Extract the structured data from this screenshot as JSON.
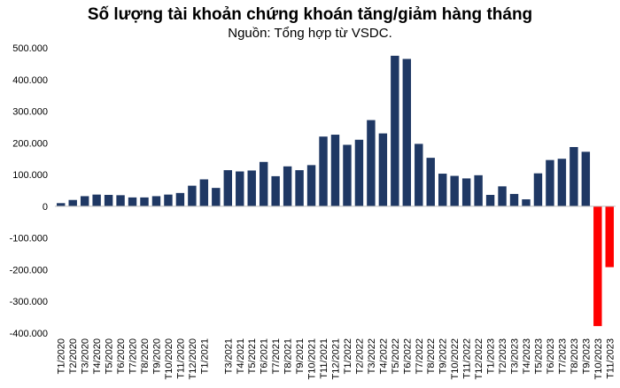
{
  "chart_data": {
    "type": "bar",
    "title": "Số lượng tài khoản chứng khoán tăng/giảm hàng tháng",
    "subtitle": "Nguồn: Tổng hợp từ VSDC.",
    "xlabel": "",
    "ylabel": "",
    "ylim": [
      -400000,
      500000
    ],
    "y_ticks": [
      "500.000",
      "400.000",
      "300.000",
      "200.000",
      "100.000",
      "0",
      "-100.000",
      "-200.000",
      "-300.000",
      "-400.000"
    ],
    "y_tick_values": [
      500000,
      400000,
      300000,
      200000,
      100000,
      0,
      -100000,
      -200000,
      -300000,
      -400000
    ],
    "grid": false,
    "legend": "none",
    "colors": {
      "positive": "#1f3864",
      "negative": "#ff0000"
    },
    "categories": [
      "T1/2020",
      "T2/2020",
      "T3/2020",
      "T4/2020",
      "T5/2020",
      "T6/2020",
      "T7/2020",
      "T8/2020",
      "T9/2020",
      "T10/2020",
      "T11/2020",
      "T12/2020",
      "T1/2021",
      "T2/2021",
      "T3/2021",
      "T4/2021",
      "T5/2021",
      "T6/2021",
      "T7/2021",
      "T8/2021",
      "T9/2021",
      "T10/2021",
      "T11/2021",
      "T12/2021",
      "T1/2022",
      "T2/2022",
      "T3/2022",
      "T4/2022",
      "T5/2022",
      "T6/2022",
      "T7/2022",
      "T8/2022",
      "T9/2022",
      "T10/2022",
      "T11/2022",
      "T12/2022",
      "T1/2023",
      "T2/2023",
      "T3/2023",
      "T4/2023",
      "T5/2023",
      "T6/2023",
      "T7/2023",
      "T8/2023",
      "T9/2023",
      "T10/2023",
      "T11/2023"
    ],
    "x_tick_labels": [
      "T1/2020",
      "T2/2020",
      "T3/2020",
      "T4/2020",
      "T5/2020",
      "T6/2020",
      "T7/2020",
      "T8/2020",
      "T9/2020",
      "T10/2020",
      "T11/2020",
      "T12/2020",
      "T1/2021",
      "",
      "T3/2021",
      "T4/2021",
      "T5/2021",
      "T6/2021",
      "T7/2021",
      "T8/2021",
      "T9/2021",
      "T10/2021",
      "T11/2021",
      "T12/2021",
      "T1/2022",
      "T2/2022",
      "T3/2022",
      "T4/2022",
      "T5/2022",
      "T6/2022",
      "T7/2022",
      "T8/2022",
      "T9/2022",
      "T10/2022",
      "T11/2022",
      "T12/2022",
      "T1/2023",
      "T2/2023",
      "T3/2023",
      "T4/2023",
      "T5/2023",
      "T6/2023",
      "T7/2023",
      "T8/2023",
      "T9/2023",
      "T10/2023",
      "T11/2023"
    ],
    "values": [
      10000,
      20000,
      32000,
      37000,
      36000,
      35000,
      28000,
      28000,
      32000,
      37000,
      42000,
      65000,
      85000,
      58000,
      114000,
      110000,
      113000,
      140000,
      95000,
      126000,
      114000,
      130000,
      220000,
      226000,
      194000,
      210000,
      272000,
      230000,
      475000,
      465000,
      197000,
      153000,
      103000,
      96000,
      88000,
      98000,
      36000,
      63000,
      39000,
      22000,
      104000,
      146000,
      150000,
      187000,
      172000,
      -378000,
      -192000
    ]
  }
}
